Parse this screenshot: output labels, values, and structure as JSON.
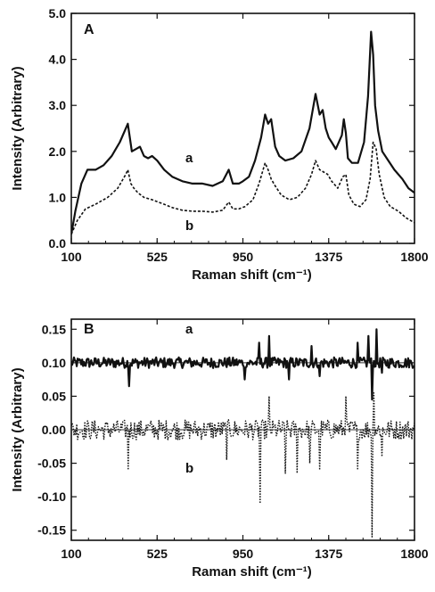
{
  "chart_data": [
    {
      "type": "line",
      "panel_label": "A",
      "xlabel": "Raman shift (cm⁻¹)",
      "ylabel": "Intensity  (Arbitrary)",
      "xlim": [
        100,
        1800
      ],
      "ylim": [
        0.0,
        5.0
      ],
      "x_ticks": [
        100,
        525,
        950,
        1375,
        1800
      ],
      "y_ticks": [
        "0.0",
        "1.0",
        "2.0",
        "3.0",
        "4.0",
        "5.0"
      ],
      "y_tick_values": [
        0,
        1,
        2,
        3,
        4,
        5
      ],
      "grid": false,
      "series": [
        {
          "name": "a",
          "style": "solid",
          "x": [
            100,
            120,
            150,
            180,
            220,
            260,
            300,
            340,
            380,
            400,
            420,
            440,
            460,
            480,
            500,
            525,
            560,
            600,
            650,
            700,
            750,
            800,
            850,
            880,
            900,
            930,
            950,
            980,
            1010,
            1040,
            1060,
            1075,
            1090,
            1110,
            1130,
            1160,
            1200,
            1240,
            1280,
            1310,
            1330,
            1345,
            1360,
            1375,
            1390,
            1410,
            1440,
            1450,
            1460,
            1470,
            1490,
            1520,
            1550,
            1570,
            1585,
            1595,
            1605,
            1620,
            1640,
            1670,
            1700,
            1740,
            1770,
            1800
          ],
          "y": [
            0.2,
            0.7,
            1.3,
            1.6,
            1.6,
            1.7,
            1.9,
            2.2,
            2.6,
            2.0,
            2.05,
            2.1,
            1.9,
            1.85,
            1.9,
            1.8,
            1.6,
            1.45,
            1.35,
            1.3,
            1.3,
            1.25,
            1.35,
            1.6,
            1.3,
            1.3,
            1.35,
            1.45,
            1.8,
            2.3,
            2.8,
            2.6,
            2.7,
            2.1,
            1.9,
            1.8,
            1.85,
            2.0,
            2.5,
            3.25,
            2.8,
            2.9,
            2.5,
            2.3,
            2.2,
            2.05,
            2.35,
            2.7,
            2.4,
            1.85,
            1.75,
            1.75,
            2.2,
            3.2,
            4.6,
            4.1,
            3.0,
            2.45,
            2.0,
            1.8,
            1.6,
            1.4,
            1.2,
            1.1
          ]
        },
        {
          "name": "b",
          "style": "dashed",
          "x": [
            100,
            130,
            170,
            220,
            280,
            330,
            370,
            380,
            395,
            410,
            430,
            460,
            500,
            530,
            560,
            600,
            650,
            700,
            750,
            800,
            850,
            880,
            900,
            930,
            960,
            1000,
            1030,
            1060,
            1075,
            1090,
            1110,
            1140,
            1180,
            1220,
            1260,
            1290,
            1310,
            1330,
            1350,
            1370,
            1390,
            1420,
            1445,
            1460,
            1475,
            1500,
            1530,
            1560,
            1580,
            1595,
            1610,
            1625,
            1650,
            1680,
            1720,
            1760,
            1800
          ],
          "y": [
            0.2,
            0.5,
            0.75,
            0.85,
            1.0,
            1.2,
            1.5,
            1.6,
            1.3,
            1.2,
            1.1,
            1.0,
            0.95,
            0.9,
            0.85,
            0.78,
            0.72,
            0.7,
            0.7,
            0.68,
            0.72,
            0.9,
            0.75,
            0.75,
            0.8,
            0.95,
            1.3,
            1.75,
            1.6,
            1.4,
            1.25,
            1.05,
            0.95,
            1.0,
            1.2,
            1.5,
            1.8,
            1.6,
            1.55,
            1.5,
            1.35,
            1.2,
            1.45,
            1.5,
            1.05,
            0.85,
            0.8,
            0.95,
            1.4,
            2.2,
            2.05,
            1.5,
            1.0,
            0.8,
            0.7,
            0.55,
            0.45
          ]
        }
      ]
    },
    {
      "type": "line",
      "panel_label": "B",
      "xlabel": "Raman shift (cm⁻¹)",
      "ylabel": "Intensity  (Arbitrary)",
      "xlim": [
        100,
        1800
      ],
      "ylim": [
        -0.165,
        0.165
      ],
      "x_ticks": [
        100,
        525,
        950,
        1375,
        1800
      ],
      "y_ticks": [
        "0.15",
        "0.10",
        "0.05",
        "0.00",
        "-0.05",
        "-0.10",
        "-0.15"
      ],
      "y_tick_values": [
        0.15,
        0.1,
        0.05,
        0.0,
        -0.05,
        -0.1,
        -0.15
      ],
      "reference_lines": [
        0.1,
        0.0
      ],
      "grid": false,
      "series": [
        {
          "name": "a",
          "style": "solid",
          "baseline": 0.1,
          "noise": 0.008,
          "spikes_x": [
            385,
            960,
            1030,
            1080,
            1180,
            1290,
            1330,
            1520,
            1570,
            1590,
            1610,
            1640
          ],
          "spikes_y": [
            0.065,
            0.075,
            0.13,
            0.14,
            0.075,
            0.125,
            0.08,
            0.13,
            0.14,
            0.045,
            0.15,
            0.085
          ]
        },
        {
          "name": "b",
          "style": "dotted",
          "baseline": 0.0,
          "noise": 0.015,
          "spikes_x": [
            380,
            870,
            1035,
            1080,
            1160,
            1220,
            1280,
            1330,
            1460,
            1520,
            1590,
            1600,
            1640
          ],
          "spikes_y": [
            -0.06,
            -0.045,
            -0.11,
            0.05,
            -0.065,
            -0.065,
            -0.05,
            -0.06,
            0.05,
            -0.06,
            -0.16,
            0.055,
            -0.04
          ]
        }
      ]
    }
  ]
}
